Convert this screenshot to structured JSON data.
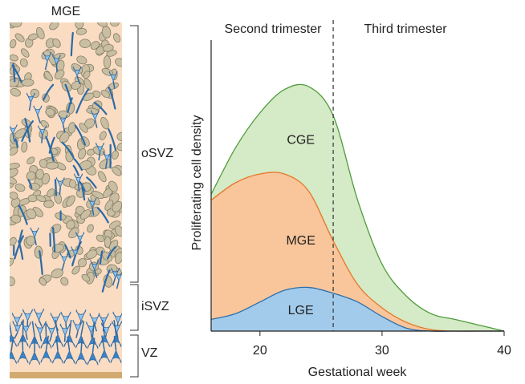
{
  "illustration": {
    "title": "MGE",
    "zones": [
      "oSVZ",
      "iSVZ",
      "VZ"
    ]
  },
  "chart_data": {
    "type": "area",
    "x_label": "Gestational week",
    "y_label": "Proliferating cell density",
    "annotations": [
      "Second trimester",
      "Third trimester"
    ],
    "trimester_boundary": 26,
    "x": [
      16,
      18,
      20,
      22,
      24,
      26,
      28,
      30,
      32,
      34,
      36,
      38,
      40
    ],
    "series": [
      {
        "name": "CGE",
        "color": "#4e9c3c",
        "fill": "#d5eac6",
        "values": [
          47,
          63,
          75,
          83,
          84,
          74,
          45,
          23,
          12,
          6,
          4,
          2,
          0
        ]
      },
      {
        "name": "MGE",
        "color": "#e5772a",
        "fill": "#f9c69c",
        "values": [
          45,
          51,
          54,
          54,
          48,
          31,
          16,
          8,
          3,
          0.5,
          0,
          0,
          0
        ]
      },
      {
        "name": "LGE",
        "color": "#2f6ea8",
        "fill": "#a2cbeb",
        "values": [
          4,
          6,
          10,
          14,
          15,
          13,
          10,
          5,
          1,
          0,
          0,
          0,
          0
        ]
      }
    ],
    "xlim": [
      16,
      40
    ],
    "xticks": [
      20,
      30,
      40
    ],
    "ylim": [
      0,
      100
    ]
  }
}
